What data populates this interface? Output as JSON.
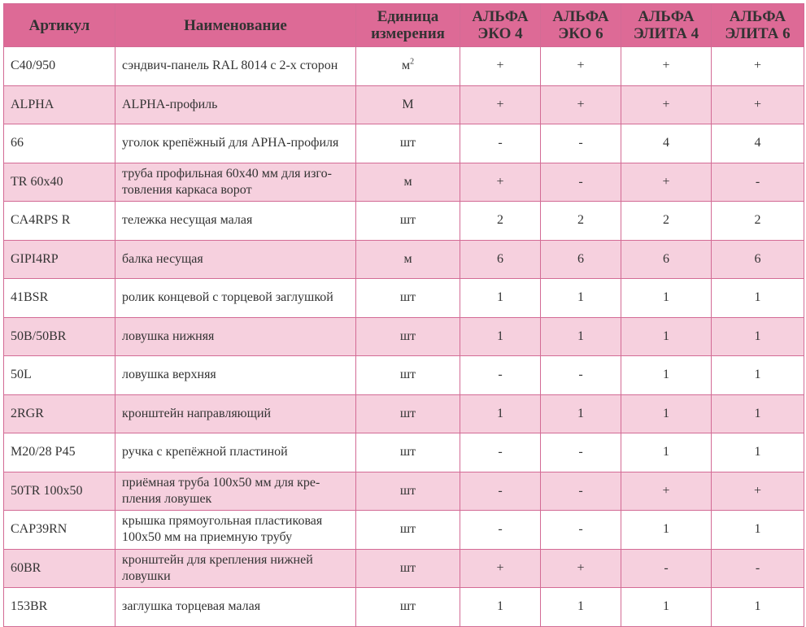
{
  "headers": {
    "article": "Артикул",
    "name": "Наименование",
    "unit_1": "Единица",
    "unit_2": "измерения",
    "c1_1": "АЛЬФА",
    "c1_2": "ЭКО 4",
    "c2_1": "АЛЬФА",
    "c2_2": "ЭКО 6",
    "c3_1": "АЛЬФА",
    "c3_2": "ЭЛИТА 4",
    "c4_1": "АЛЬФА",
    "c4_2": "ЭЛИТА 6"
  },
  "rows": [
    {
      "article": "C40/950",
      "name": "сэндвич-панель RAL 8014 с 2-х сторон",
      "unit": "м",
      "unit_sup": "2",
      "v": [
        "+",
        "+",
        "+",
        "+"
      ]
    },
    {
      "article": "ALPHA",
      "name": "ALPHA-профиль",
      "unit": "М",
      "v": [
        "+",
        "+",
        "+",
        "+"
      ]
    },
    {
      "article": "66",
      "name": "уголок крепёжный для APHA-профиля",
      "unit": "шт",
      "v": [
        "-",
        "-",
        "4",
        "4"
      ]
    },
    {
      "article": "TR 60x40",
      "name": "труба профильная 60x40 мм для изго-\nтовления каркаса ворот",
      "unit": "м",
      "v": [
        "+",
        "-",
        "+",
        "-"
      ]
    },
    {
      "article": "CA4RPS R",
      "name": "тележка несущая малая",
      "unit": "шт",
      "v": [
        "2",
        "2",
        "2",
        "2"
      ]
    },
    {
      "article": "GIPI4RP",
      "name": "балка несущая",
      "unit": "м",
      "v": [
        "6",
        "6",
        "6",
        "6"
      ]
    },
    {
      "article": "41BSR",
      "name": "ролик концевой с торцевой заглушкой",
      "unit": "шт",
      "v": [
        "1",
        "1",
        "1",
        "1"
      ]
    },
    {
      "article": "50B/50BR",
      "name": "ловушка нижняя",
      "unit": "шт",
      "v": [
        "1",
        "1",
        "1",
        "1"
      ]
    },
    {
      "article": "50L",
      "name": "ловушка верхняя",
      "unit": "шт",
      "v": [
        "-",
        "-",
        "1",
        "1"
      ]
    },
    {
      "article": "2RGR",
      "name": "кронштейн направляющий",
      "unit": "шт",
      "v": [
        "1",
        "1",
        "1",
        "1"
      ]
    },
    {
      "article": "M20/28 P45",
      "name": "ручка с крепёжной пластиной",
      "unit": "шт",
      "v": [
        "-",
        "-",
        "1",
        "1"
      ]
    },
    {
      "article": "50TR 100x50",
      "name": "приёмная труба 100x50 мм для кре-\nпления ловушек",
      "unit": "шт",
      "v": [
        "-",
        "-",
        "+",
        "+"
      ]
    },
    {
      "article": "CAP39RN",
      "name": "крышка прямоугольная пластиковая\n100x50 мм на приемную трубу",
      "unit": "шт",
      "v": [
        "-",
        "-",
        "1",
        "1"
      ]
    },
    {
      "article": "60BR",
      "name": "кронштейн для крепления нижней\nловушки",
      "unit": "шт",
      "v": [
        "+",
        "+",
        "-",
        "-"
      ]
    },
    {
      "article": "153BR",
      "name": "заглушка торцевая малая",
      "unit": "шт",
      "v": [
        "1",
        "1",
        "1",
        "1"
      ]
    }
  ],
  "colors": {
    "header_bg": "#dd6a96",
    "stripe_bg": "#f6d0de",
    "border": "#d36b95"
  }
}
